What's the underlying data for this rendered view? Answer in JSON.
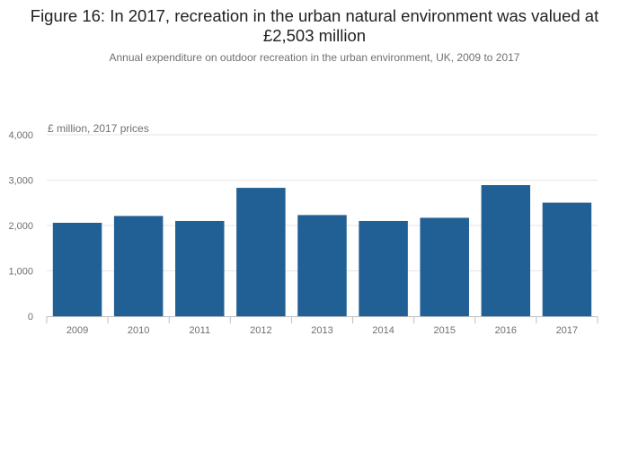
{
  "chart_data": {
    "type": "bar",
    "title": "Figure 16: In 2017, recreation in the urban natural environment was valued at £2,503 million",
    "subtitle": "Annual expenditure on outdoor recreation in the urban environment, UK, 2009 to 2017",
    "ylabel": "£ million, 2017 prices",
    "xlabel": "",
    "categories": [
      "2009",
      "2010",
      "2011",
      "2012",
      "2013",
      "2014",
      "2015",
      "2016",
      "2017"
    ],
    "values": [
      2060,
      2210,
      2100,
      2830,
      2230,
      2100,
      2170,
      2890,
      2503
    ],
    "ylim": [
      0,
      4000
    ],
    "yticks": [
      0,
      1000,
      2000,
      3000,
      4000
    ],
    "ytick_labels": [
      "0",
      "1,000",
      "2,000",
      "3,000",
      "4,000"
    ],
    "bar_color": "#206095",
    "grid": true,
    "legend": "none"
  }
}
